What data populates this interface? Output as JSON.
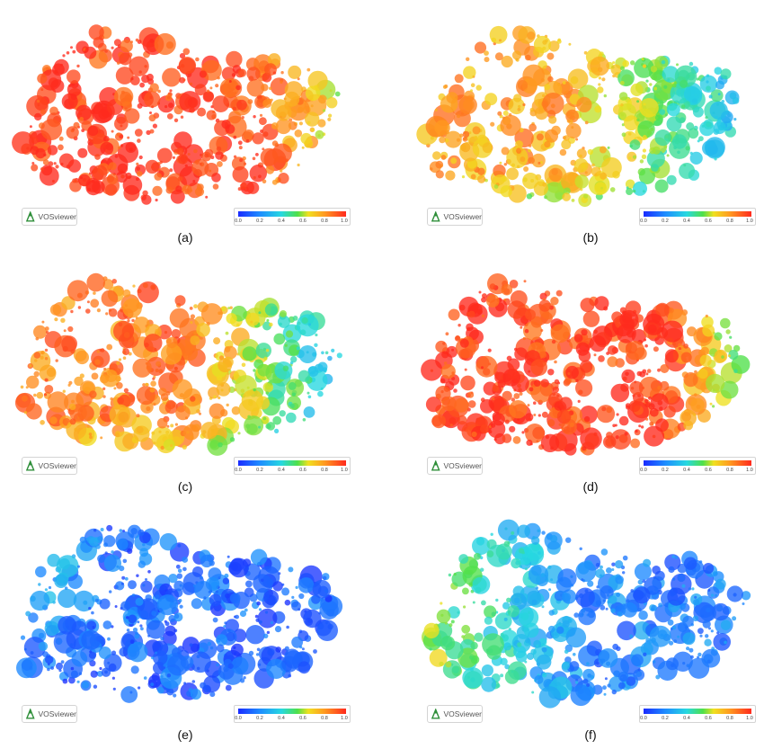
{
  "colorbar": {
    "ticks": [
      "0.0",
      "0.2",
      "0.4",
      "0.6",
      "0.8",
      "1.0"
    ],
    "colors": [
      "#1a2bff",
      "#1e8cff",
      "#27d8e0",
      "#4fe04a",
      "#f0e020",
      "#ff9a20",
      "#ff2a1e"
    ]
  },
  "logo": {
    "text": "VOSviewer"
  },
  "chart_data": [
    {
      "type": "scatter",
      "caption": "(a)",
      "color_range": [
        0,
        1
      ],
      "overall_mean_value": 0.93
    },
    {
      "type": "scatter",
      "caption": "(b)",
      "color_range": [
        0,
        1
      ],
      "overall_mean_value": 0.65
    },
    {
      "type": "scatter",
      "caption": "(c)",
      "color_range": [
        0,
        1
      ],
      "overall_mean_value": 0.72
    },
    {
      "type": "scatter",
      "caption": "(d)",
      "color_range": [
        0,
        1
      ],
      "overall_mean_value": 0.9
    },
    {
      "type": "scatter",
      "caption": "(e)",
      "color_range": [
        0,
        1
      ],
      "overall_mean_value": 0.15
    },
    {
      "type": "scatter",
      "caption": "(f)",
      "color_range": [
        0,
        1
      ],
      "overall_mean_value": 0.3
    }
  ]
}
